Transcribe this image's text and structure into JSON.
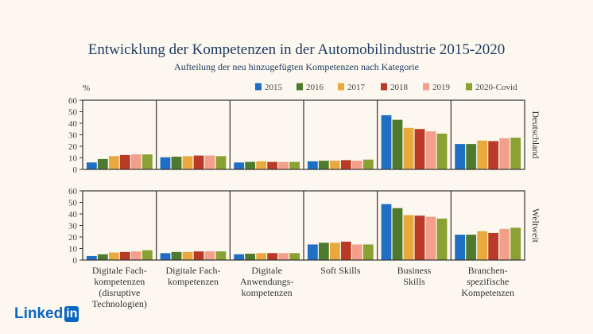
{
  "page": {
    "title": "Entwicklung der Kompetenzen in der Automobilindustrie 2015-2020",
    "subtitle": "Aufteilung der neu hinzugefügten Kompetenzen nach Kategorie",
    "logo_text": "Linked",
    "logo_box": "in"
  },
  "chart_data": {
    "type": "bar",
    "y_unit": "%",
    "ylim": [
      0,
      60
    ],
    "yticks": [
      0,
      10,
      20,
      30,
      40,
      50,
      60
    ],
    "grid": false,
    "legend_position": "top-right",
    "categories": [
      [
        "Digitale Fach-",
        "kompetenzen",
        "(disruptive",
        "Technologien)"
      ],
      [
        "Digitale Fach-",
        "kompetenzen"
      ],
      [
        "Digitale",
        "Anwendungs-",
        "kompetenzen"
      ],
      [
        "Soft Skills"
      ],
      [
        "Business",
        "Skills"
      ],
      [
        "Branchen-",
        "spezifische",
        "Kompetenzen"
      ]
    ],
    "series_names": [
      "2015",
      "2016",
      "2017",
      "2018",
      "2019",
      "2020-Covid"
    ],
    "series_colors": [
      "#1f6fc5",
      "#4d7a2c",
      "#e9a93f",
      "#b93a26",
      "#f2a08b",
      "#8aa133"
    ],
    "panels": [
      {
        "label": "Deutschland",
        "values": [
          [
            6,
            9,
            11.5,
            12.5,
            13,
            13
          ],
          [
            10.5,
            11,
            11.5,
            12,
            12,
            11.5
          ],
          [
            6,
            6.5,
            7,
            6.5,
            6.5,
            6.5
          ],
          [
            7,
            7.5,
            7.5,
            8,
            7.5,
            8.5
          ],
          [
            47,
            43,
            36,
            35,
            33,
            31
          ],
          [
            22,
            22,
            25,
            24.5,
            27,
            27.5
          ]
        ]
      },
      {
        "label": "Weltweit",
        "values": [
          [
            3.5,
            5,
            6.5,
            7,
            7.5,
            8.5
          ],
          [
            6,
            7,
            7,
            7.5,
            7.5,
            7.5
          ],
          [
            5,
            5.5,
            6,
            6,
            6,
            6
          ],
          [
            13.5,
            15,
            15,
            16,
            13.5,
            13.5
          ],
          [
            48.5,
            45,
            39,
            38.5,
            37.5,
            36
          ],
          [
            22,
            22,
            25,
            23.5,
            27,
            28
          ]
        ]
      }
    ]
  }
}
